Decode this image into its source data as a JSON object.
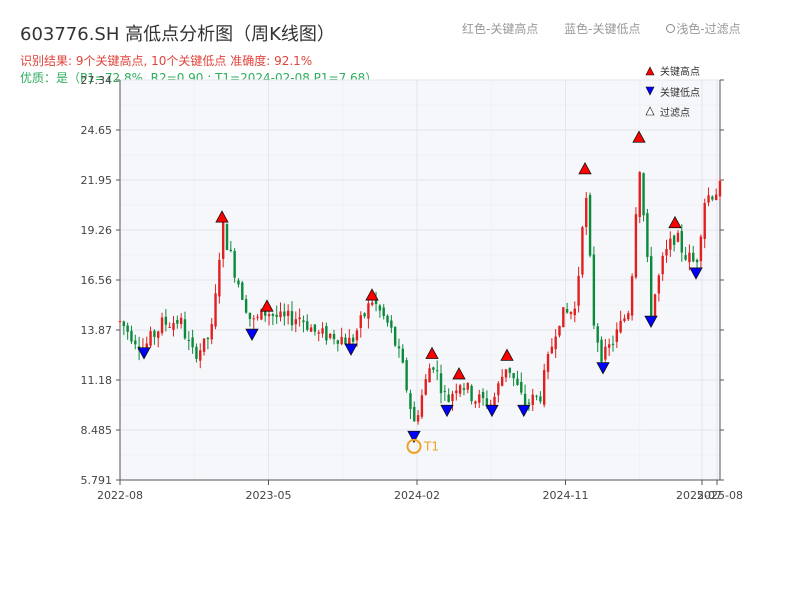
{
  "header": {
    "title": "603776.SH 高低点分析图（周K线图）",
    "subtitle1": "识别结果: 9个关键高点, 10个关键低点   准确度: 92.1%",
    "subtitle2": "优质：是（P1=72.8%, R2=0.90 ; T1=2024-02-08 P1=7.68）"
  },
  "top_legend": {
    "red": "红色-关键高点",
    "blue": "蓝色-关键低点",
    "light": "浅色-过滤点"
  },
  "chart_data": {
    "type": "candlestick",
    "title": "603776.SH 高低点分析图（周K线图）",
    "y_ticks": [
      "5.791",
      "8.485",
      "11.18",
      "13.87",
      "16.56",
      "19.26",
      "21.95",
      "24.65",
      "27.34"
    ],
    "ylim": [
      5.791,
      27.34
    ],
    "x_ticks": [
      "2022-08",
      "2023-05",
      "2024-02",
      "2024-11",
      "2025-07",
      "2025-08"
    ],
    "grid": true,
    "legend": {
      "position": "top-right",
      "entries": [
        "关键高点",
        "关键低点",
        "过滤点"
      ]
    },
    "colors": {
      "up": "#e02020",
      "down": "#0a8a3a",
      "high_marker": "#ff0000",
      "low_marker": "#0000ff",
      "annotation": "#f0a020"
    },
    "key_highs": [
      {
        "x": 0.17,
        "price": 19.9
      },
      {
        "x": 0.245,
        "price": 15.1
      },
      {
        "x": 0.42,
        "price": 15.7
      },
      {
        "x": 0.52,
        "price": 12.55
      },
      {
        "x": 0.565,
        "price": 11.45
      },
      {
        "x": 0.645,
        "price": 12.45
      },
      {
        "x": 0.775,
        "price": 22.5
      },
      {
        "x": 0.865,
        "price": 24.2
      },
      {
        "x": 0.925,
        "price": 19.6
      }
    ],
    "key_lows": [
      {
        "x": 0.04,
        "price": 12.7
      },
      {
        "x": 0.22,
        "price": 13.7
      },
      {
        "x": 0.385,
        "price": 12.9
      },
      {
        "x": 0.49,
        "price": 8.2
      },
      {
        "x": 0.545,
        "price": 9.6
      },
      {
        "x": 0.62,
        "price": 9.6
      },
      {
        "x": 0.673,
        "price": 9.6
      },
      {
        "x": 0.805,
        "price": 11.9
      },
      {
        "x": 0.885,
        "price": 14.4
      },
      {
        "x": 0.96,
        "price": 17.0
      }
    ],
    "annotation": {
      "label": "T1",
      "x": 0.49,
      "price": 7.6
    }
  }
}
